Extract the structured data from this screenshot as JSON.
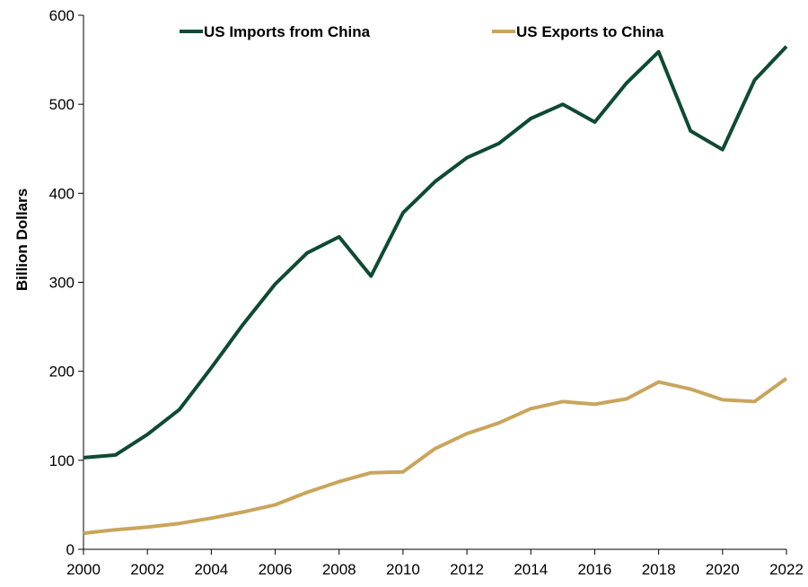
{
  "chart_data": {
    "type": "line",
    "ylabel": "Billion Dollars",
    "xlim": [
      2000,
      2022
    ],
    "ylim": [
      0,
      600
    ],
    "x_ticks": [
      "2000",
      "2002",
      "2004",
      "2006",
      "2008",
      "2010",
      "2012",
      "2014",
      "2016",
      "2018",
      "2020",
      "2022"
    ],
    "y_ticks": [
      "0",
      "100",
      "200",
      "300",
      "400",
      "500",
      "600"
    ],
    "grid": false,
    "legend_position": "top",
    "x": [
      2000,
      2001,
      2002,
      2003,
      2004,
      2005,
      2006,
      2007,
      2008,
      2009,
      2010,
      2011,
      2012,
      2013,
      2014,
      2015,
      2016,
      2017,
      2018,
      2019,
      2020,
      2021,
      2022
    ],
    "series": [
      {
        "name": "US Imports from China",
        "color": "#0f4a33",
        "values": [
          103,
          106,
          129,
          157,
          204,
          253,
          298,
          333,
          351,
          307,
          378,
          413,
          440,
          456,
          484,
          500,
          480,
          524,
          559,
          470,
          449,
          527,
          565
        ]
      },
      {
        "name": "US Exports to China",
        "color": "#c9a55c",
        "values": [
          18,
          22,
          25,
          29,
          35,
          42,
          50,
          64,
          76,
          86,
          87,
          113,
          130,
          142,
          158,
          166,
          163,
          169,
          188,
          180,
          168,
          166,
          192
        ]
      }
    ]
  }
}
